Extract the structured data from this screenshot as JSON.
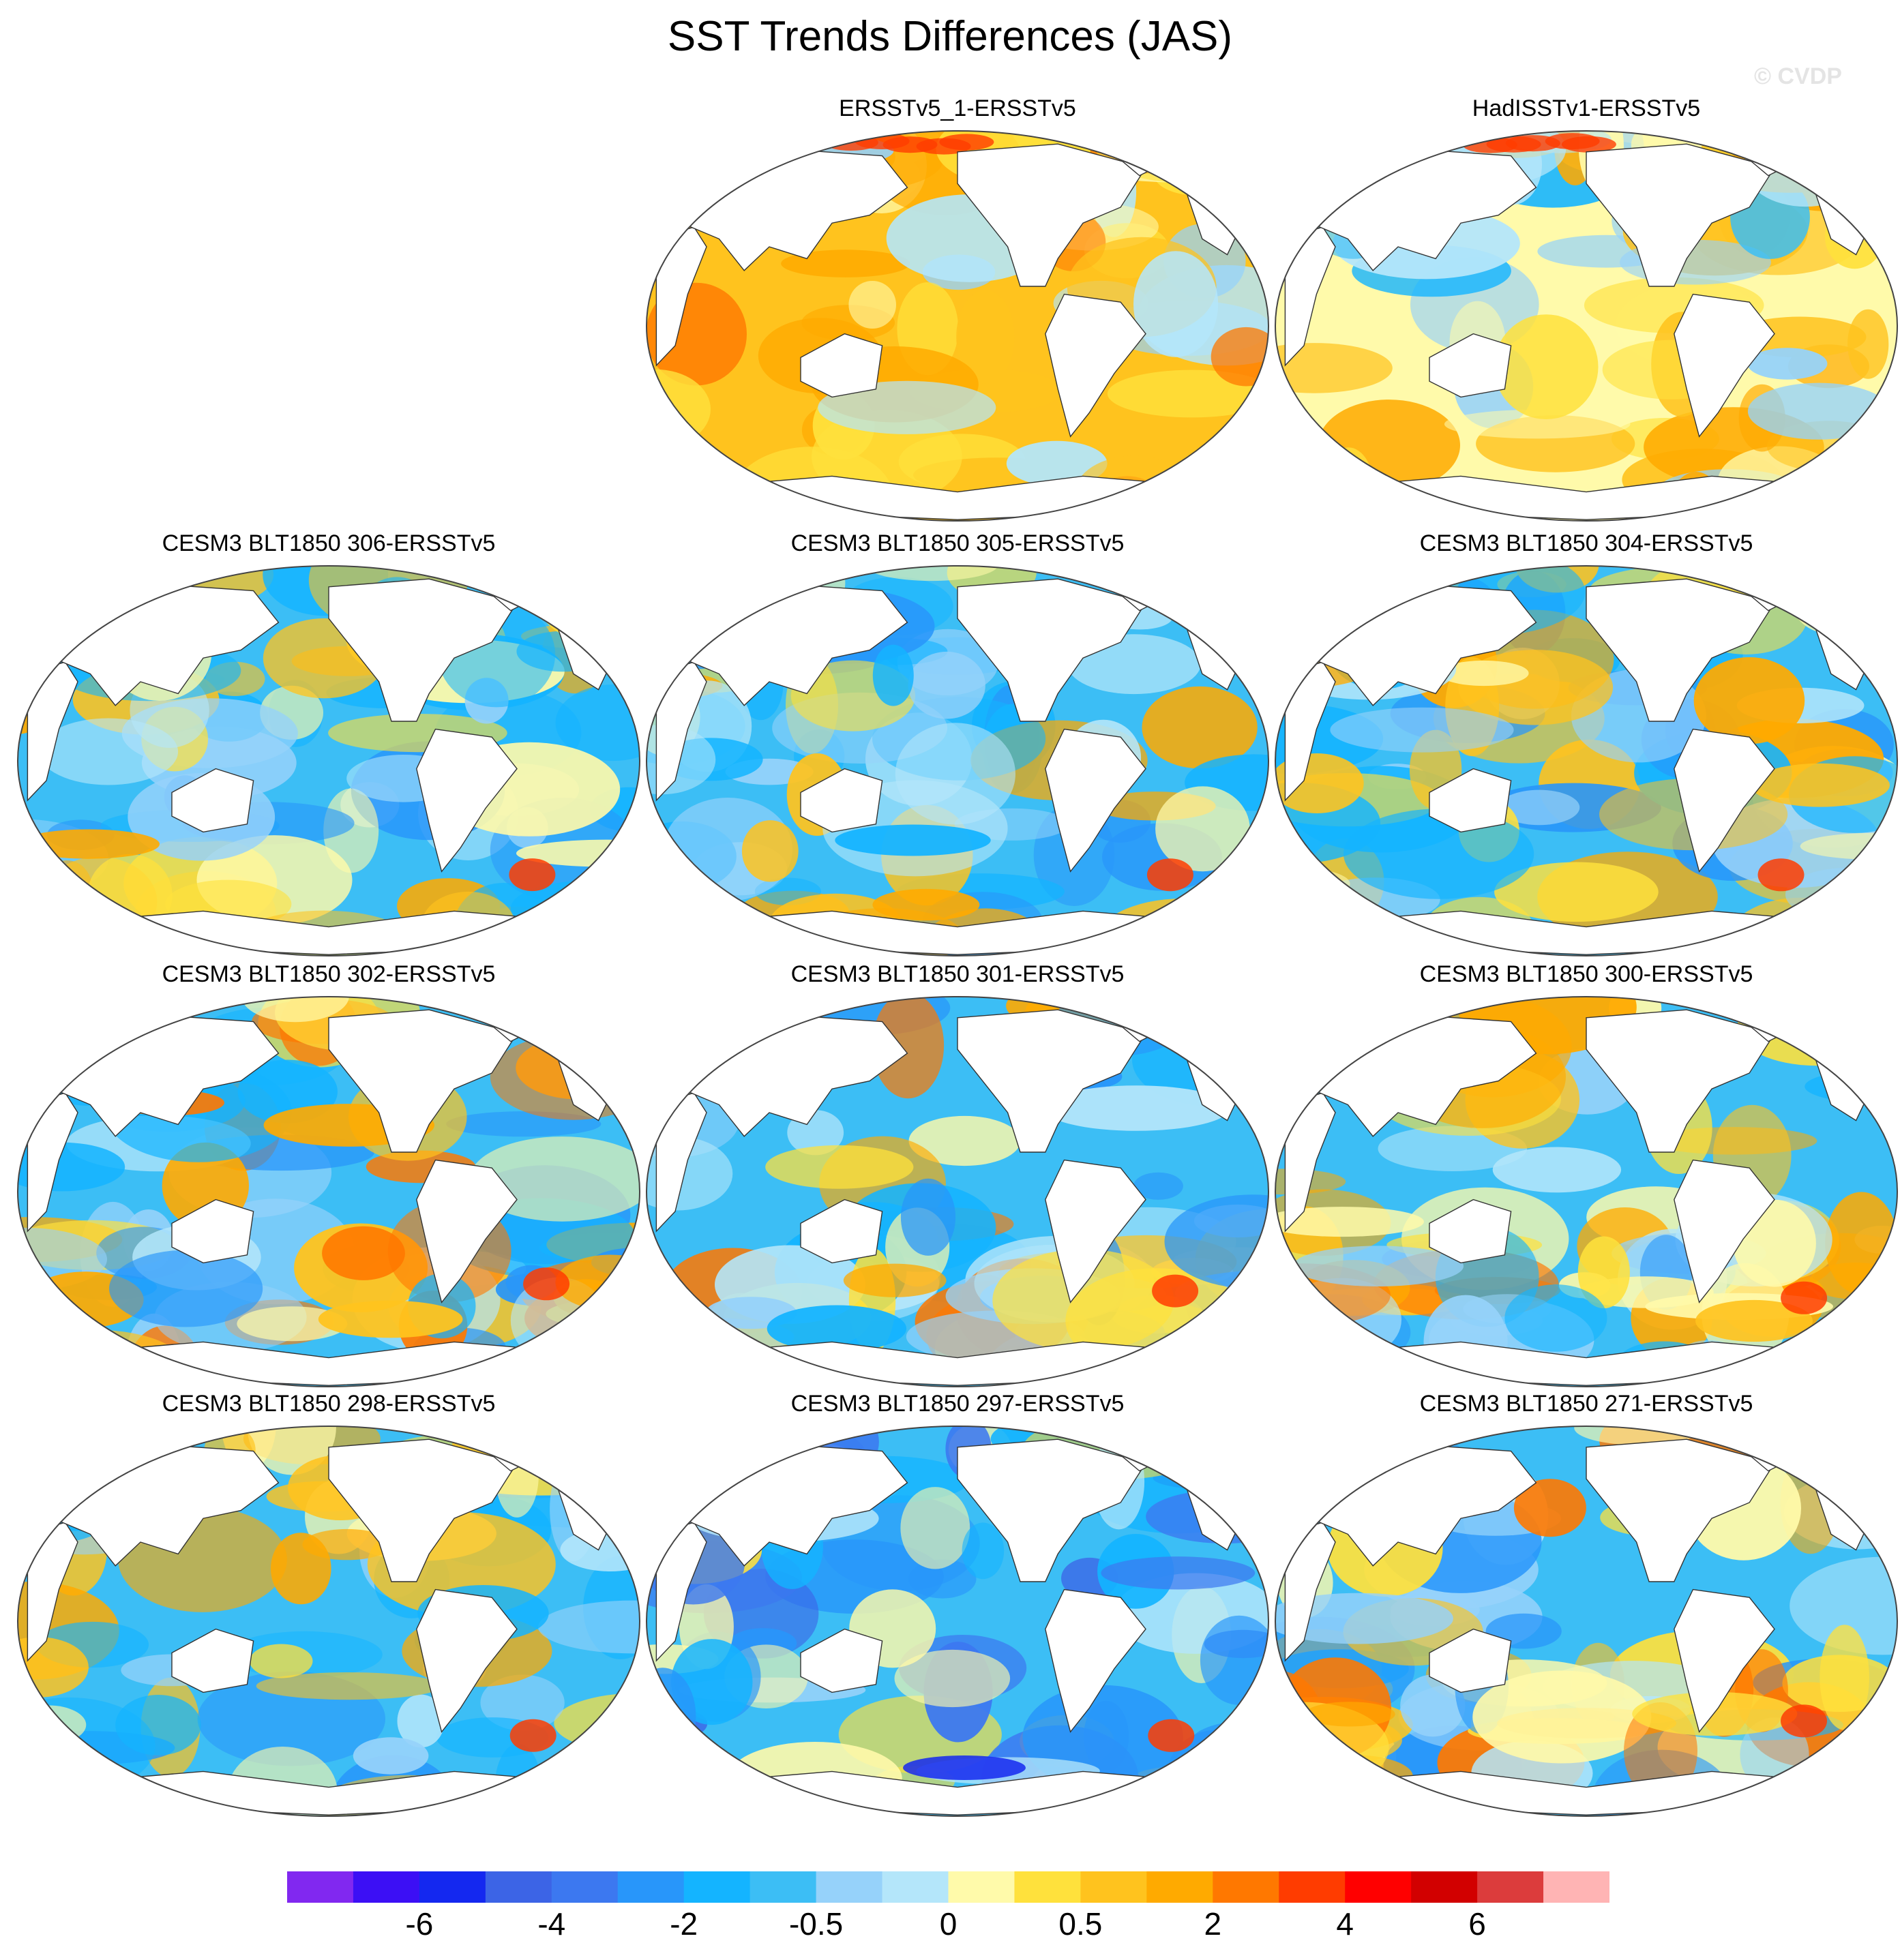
{
  "figure": {
    "title": "SST Trends Differences (JAS)",
    "watermark": "© CVDP"
  },
  "panels": [
    {
      "label": "ERSSTv5_1-ERSSTv5",
      "mode": "warm",
      "row": 0,
      "col": 1
    },
    {
      "label": "HadISSTv1-ERSSTv5",
      "mode": "mixed",
      "row": 0,
      "col": 2
    },
    {
      "label": "CESM3 BLT1850 306-ERSSTv5",
      "mode": "cool",
      "row": 1,
      "col": 0
    },
    {
      "label": "CESM3 BLT1850 305-ERSSTv5",
      "mode": "cool",
      "row": 1,
      "col": 1
    },
    {
      "label": "CESM3 BLT1850 304-ERSSTv5",
      "mode": "cool",
      "row": 1,
      "col": 2
    },
    {
      "label": "CESM3 BLT1850 302-ERSSTv5",
      "mode": "coolwarmsouth",
      "row": 2,
      "col": 0
    },
    {
      "label": "CESM3 BLT1850 301-ERSSTv5",
      "mode": "coolwarmsouth",
      "row": 2,
      "col": 1
    },
    {
      "label": "CESM3 BLT1850 300-ERSSTv5",
      "mode": "coolwarmsouth",
      "row": 2,
      "col": 2
    },
    {
      "label": "CESM3 BLT1850 298-ERSSTv5",
      "mode": "cool",
      "row": 3,
      "col": 0
    },
    {
      "label": "CESM3 BLT1850 297-ERSSTv5",
      "mode": "cooldeep",
      "row": 3,
      "col": 1
    },
    {
      "label": "CESM3 BLT1850 271-ERSSTv5",
      "mode": "coolwarmsouth",
      "row": 3,
      "col": 2
    }
  ],
  "colorbar": {
    "colors": [
      "#8128f0",
      "#3c0ff5",
      "#1428f0",
      "#3c64e6",
      "#3c78f0",
      "#2896fa",
      "#14b4ff",
      "#3cbef5",
      "#96d2fa",
      "#b4e6fa",
      "#fffaaa",
      "#ffe13c",
      "#ffc31e",
      "#ffaa00",
      "#ff7800",
      "#ff3c00",
      "#ff0000",
      "#d20000",
      "#dc3c3c",
      "#ffb4b4"
    ],
    "labels": [
      "-6",
      "-4",
      "-2",
      "-0.5",
      "0",
      "0.5",
      "2",
      "4",
      "6"
    ]
  }
}
